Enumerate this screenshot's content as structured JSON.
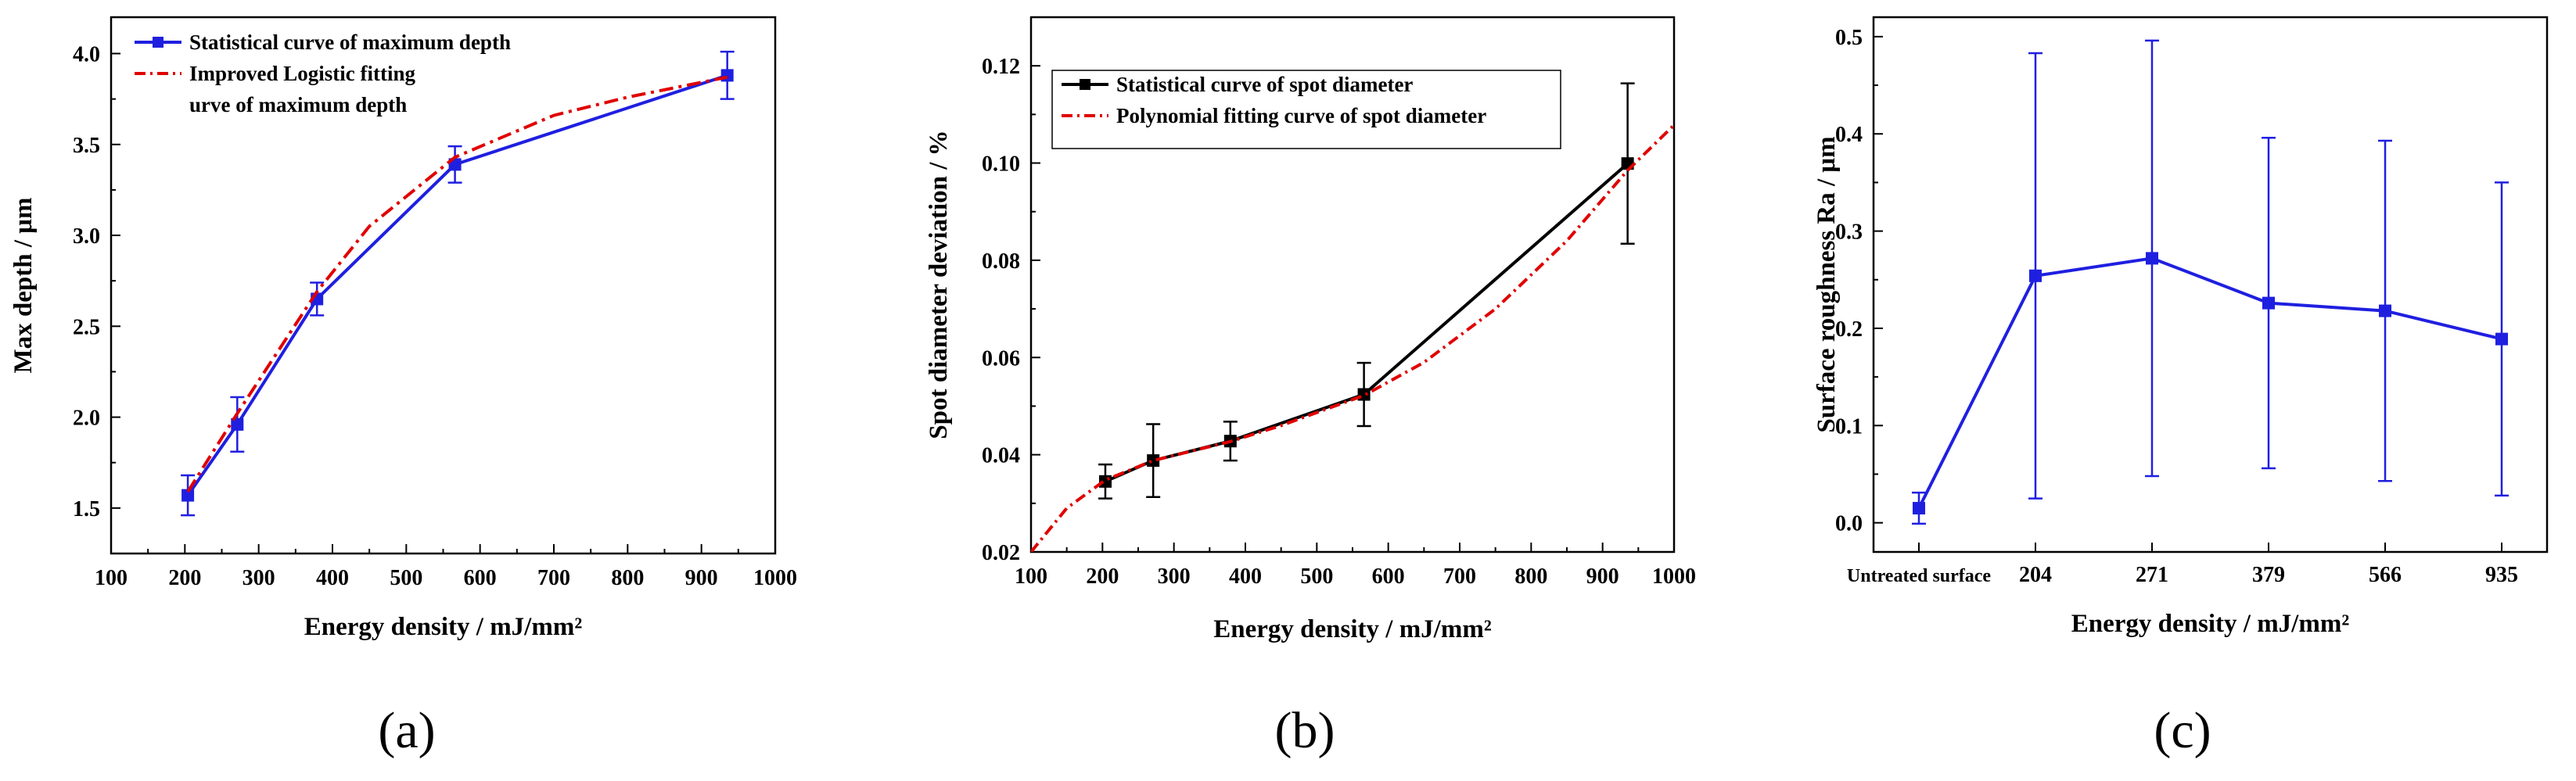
{
  "chart_data": [
    {
      "panel_label": "(a)",
      "type": "line",
      "xlabel": "Energy density / mJ/mm²",
      "ylabel": "Max depth / μm",
      "xlim": [
        100,
        1000
      ],
      "ylim": [
        1.25,
        4.2
      ],
      "xticks": [
        "100",
        "200",
        "300",
        "400",
        "500",
        "600",
        "700",
        "800",
        "900",
        "1000"
      ],
      "yticks": [
        "1.5",
        "2.0",
        "2.5",
        "3.0",
        "3.5",
        "4.0"
      ],
      "series": [
        {
          "name": "Statistical curve of maximum depth",
          "style": "line-square",
          "color": "#1f1fe0",
          "x": [
            204,
            271,
            379,
            566,
            935
          ],
          "y": [
            1.57,
            1.96,
            2.65,
            3.39,
            3.88
          ],
          "err": [
            0.11,
            0.15,
            0.09,
            0.1,
            0.13
          ]
        },
        {
          "name": "Improved Logistic fitting",
          "name_line2": "urve of maximum depth",
          "style": "dashdot",
          "color": "#e00000",
          "x": [
            204,
            271,
            379,
            450,
            566,
            700,
            800,
            935
          ],
          "y": [
            1.59,
            2.02,
            2.69,
            3.05,
            3.43,
            3.66,
            3.76,
            3.87
          ]
        }
      ]
    },
    {
      "panel_label": "(b)",
      "type": "line",
      "xlabel": "Energy density / mJ/mm²",
      "ylabel": "Spot diameter deviation / %",
      "xlim": [
        100,
        1000
      ],
      "ylim": [
        0.02,
        0.13
      ],
      "xticks": [
        "100",
        "200",
        "300",
        "400",
        "500",
        "600",
        "700",
        "800",
        "900",
        "1000"
      ],
      "yticks": [
        "0.02",
        "0.04",
        "0.06",
        "0.08",
        "0.10",
        "0.12"
      ],
      "series": [
        {
          "name": "Statistical curve of spot diameter",
          "style": "line-square",
          "color": "#000000",
          "x": [
            204,
            271,
            379,
            566,
            935
          ],
          "y": [
            0.0345,
            0.0388,
            0.0428,
            0.0524,
            0.0999
          ],
          "err": [
            0.0035,
            0.0075,
            0.004,
            0.0065,
            0.0165
          ]
        },
        {
          "name": "Polynomial fitting curve of spot diameter",
          "style": "dashdot",
          "color": "#e00000",
          "x": [
            100,
            150,
            204,
            271,
            379,
            450,
            566,
            650,
            750,
            850,
            935,
            1000
          ],
          "y": [
            0.02,
            0.029,
            0.0348,
            0.0388,
            0.0427,
            0.046,
            0.0522,
            0.059,
            0.07,
            0.084,
            0.0985,
            0.1078
          ]
        }
      ]
    },
    {
      "panel_label": "(c)",
      "type": "line",
      "xlabel": "Energy density / mJ/mm²",
      "ylabel": "Surface roughness Ra / μm",
      "categories": [
        "Untreated surface",
        "204",
        "271",
        "379",
        "566",
        "935"
      ],
      "ylim": [
        -0.03,
        0.52
      ],
      "yticks": [
        "0.0",
        "0.1",
        "0.2",
        "0.3",
        "0.4",
        "0.5"
      ],
      "series": [
        {
          "name": "Ra",
          "style": "line-square",
          "color": "#1f1fe0",
          "values": [
            0.015,
            0.254,
            0.272,
            0.226,
            0.218,
            0.189
          ],
          "err": [
            0.016,
            0.229,
            0.224,
            0.17,
            0.175,
            0.161
          ]
        }
      ]
    }
  ]
}
